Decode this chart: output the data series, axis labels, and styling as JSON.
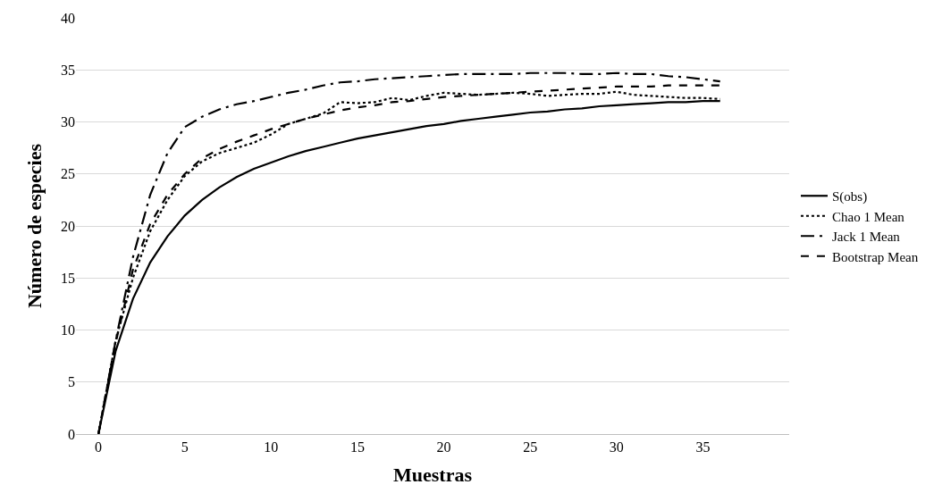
{
  "chart_data": {
    "type": "line",
    "xlabel": "Muestras",
    "ylabel": "Número de especies",
    "x": [
      0,
      1,
      2,
      3,
      4,
      5,
      6,
      7,
      8,
      9,
      10,
      11,
      12,
      13,
      14,
      15,
      16,
      17,
      18,
      19,
      20,
      21,
      22,
      23,
      24,
      25,
      26,
      27,
      28,
      29,
      30,
      31,
      32,
      33,
      34,
      35,
      36
    ],
    "series": [
      {
        "name": "S(obs)",
        "color": "#000000",
        "line_style": "solid",
        "values": [
          0,
          8,
          13,
          16.5,
          19,
          21,
          22.5,
          23.7,
          24.7,
          25.5,
          26.1,
          26.7,
          27.2,
          27.6,
          28.0,
          28.4,
          28.7,
          29.0,
          29.3,
          29.6,
          29.8,
          30.1,
          30.3,
          30.5,
          30.7,
          30.9,
          31.0,
          31.2,
          31.3,
          31.5,
          31.6,
          31.7,
          31.8,
          31.9,
          31.9,
          32.0,
          32.0
        ]
      },
      {
        "name": "Chao 1 Mean",
        "color": "#000000",
        "line_style": "dotted",
        "values": [
          0,
          9,
          15,
          19.5,
          22.5,
          24.8,
          26.2,
          27.0,
          27.5,
          28.0,
          28.8,
          29.8,
          30.3,
          30.8,
          31.9,
          31.8,
          31.9,
          32.3,
          32.1,
          32.5,
          32.8,
          32.7,
          32.6,
          32.7,
          32.8,
          32.7,
          32.5,
          32.6,
          32.7,
          32.7,
          32.9,
          32.6,
          32.5,
          32.4,
          32.3,
          32.3,
          32.2
        ]
      },
      {
        "name": "Jack 1 Mean",
        "color": "#000000",
        "line_style": "dashdot",
        "values": [
          0,
          9,
          17,
          23,
          27,
          29.5,
          30.5,
          31.2,
          31.7,
          32.0,
          32.4,
          32.8,
          33.1,
          33.5,
          33.8,
          33.9,
          34.1,
          34.2,
          34.3,
          34.4,
          34.5,
          34.6,
          34.6,
          34.6,
          34.6,
          34.7,
          34.7,
          34.7,
          34.6,
          34.6,
          34.7,
          34.6,
          34.6,
          34.4,
          34.3,
          34.1,
          33.9
        ]
      },
      {
        "name": "Bootstrap Mean",
        "color": "#000000",
        "line_style": "dashed",
        "values": [
          0,
          8.8,
          15.8,
          20.2,
          23,
          25,
          26.5,
          27.4,
          28.1,
          28.7,
          29.3,
          29.8,
          30.3,
          30.7,
          31.1,
          31.4,
          31.6,
          31.9,
          32.0,
          32.2,
          32.4,
          32.5,
          32.6,
          32.7,
          32.8,
          32.9,
          33.0,
          33.1,
          33.2,
          33.3,
          33.4,
          33.4,
          33.4,
          33.5,
          33.5,
          33.5,
          33.5
        ]
      }
    ],
    "xlim": [
      -1.3,
      40
    ],
    "xticks": [
      0,
      5,
      10,
      15,
      20,
      25,
      30,
      35
    ],
    "ylim": [
      0,
      40
    ],
    "yticks": [
      0,
      5,
      10,
      15,
      20,
      25,
      30,
      35,
      40
    ],
    "grid": "y",
    "legend": "right",
    "marker": "none"
  }
}
